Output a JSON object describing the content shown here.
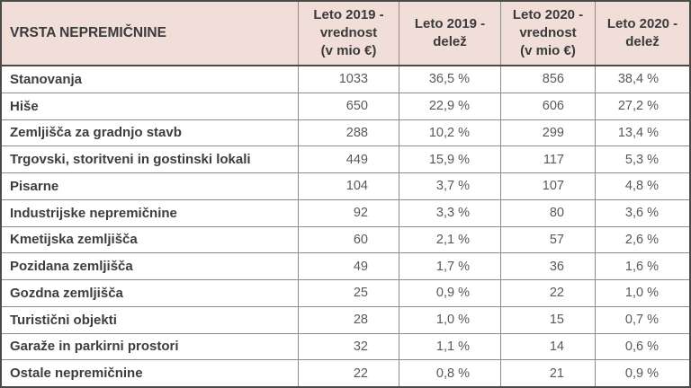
{
  "chart_data": {
    "type": "table",
    "title": "",
    "columns": [
      "VRSTA NEPREMIČNINE",
      "Leto 2019 - vrednost (v mio €)",
      "Leto 2019 - delež",
      "Leto 2020 - vrednost (v mio €)",
      "Leto 2020 - delež"
    ],
    "rows": [
      [
        "Stanovanja",
        1033,
        "36,5 %",
        856,
        "38,4 %"
      ],
      [
        "Hiše",
        650,
        "22,9 %",
        606,
        "27,2 %"
      ],
      [
        "Zemljišča za gradnjo stavb",
        288,
        "10,2 %",
        299,
        "13,4 %"
      ],
      [
        "Trgovski, storitveni in gostinski lokali",
        449,
        "15,9 %",
        117,
        "5,3 %"
      ],
      [
        "Pisarne",
        104,
        "3,7 %",
        107,
        "4,8 %"
      ],
      [
        "Industrijske nepremičnine",
        92,
        "3,3 %",
        80,
        "3,6 %"
      ],
      [
        "Kmetijska zemljišča",
        60,
        "2,1 %",
        57,
        "2,6 %"
      ],
      [
        "Pozidana zemljišča",
        49,
        "1,7 %",
        36,
        "1,6 %"
      ],
      [
        "Gozdna zemljišča",
        25,
        "0,9 %",
        22,
        "1,0 %"
      ],
      [
        "Turistični objekti",
        28,
        "1,0 %",
        15,
        "0,7 %"
      ],
      [
        "Garaže in parkirni prostori",
        32,
        "1,1 %",
        14,
        "0,6 %"
      ],
      [
        "Ostale nepremičnine",
        22,
        "0,8 %",
        21,
        "0,9 %"
      ]
    ]
  },
  "ui": {
    "header_display": [
      "VRSTA NEPREMIČNINE",
      "Leto 2019 -\nvrednost\n(v mio €)",
      "Leto 2019 -\ndelež",
      "Leto 2020 -\nvrednost\n(v mio €)",
      "Leto 2020 -\ndelež"
    ],
    "colors": {
      "header_bg": "#f1ded8",
      "outer_border": "#4a4a4a",
      "grid_line": "#8c8c8c",
      "header_text": "#3a3a3a",
      "label_text": "#3d3d3d",
      "value_text": "#595959"
    }
  }
}
